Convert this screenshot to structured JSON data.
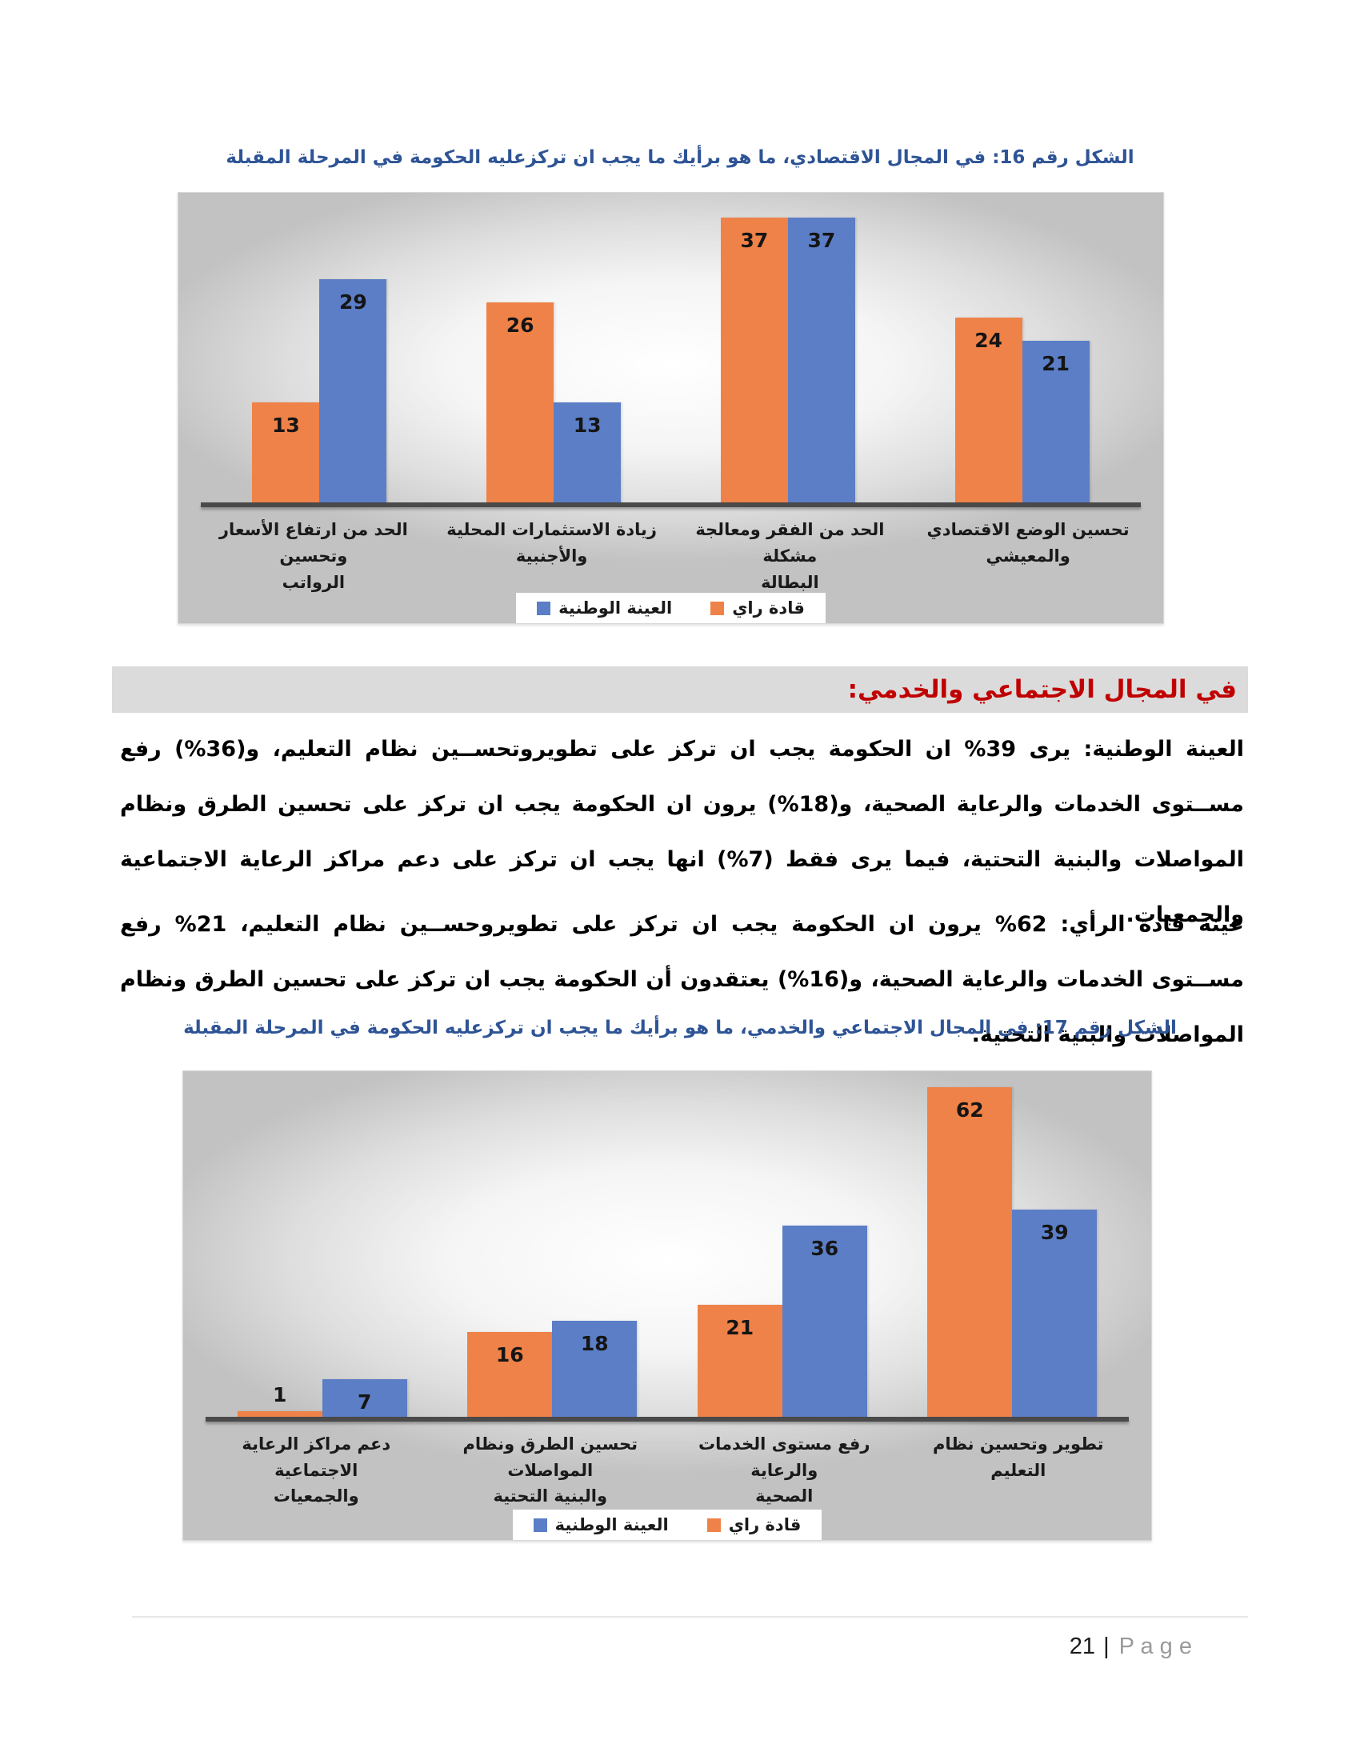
{
  "figure16": {
    "caption": "الشكل رقم  16: في المجال الاقتصادي، ما هو برأيك ما يجب ان تركزعليه الحكومة في المرحلة المقبلة"
  },
  "section_heading": "في المجال الاجتماعي والخدمي:",
  "paragraphs": {
    "national": "العينة الوطنية: يرى 39% ان الحكومة يجب ان تركز على تطويروتحســين نظام التعليم، و(36%) رفع مســتوى الخدمات والرعاية الصحية، و(18%) يرون ان الحكومة يجب ان تركز على تحسين الطرق ونظام المواصلات والبنية التحتية، فيما يرى فقط (7%) انها يجب ان تركز على دعم مراكز الرعاية الاجتماعية والجمعيات.",
    "leaders": "عينة قادة الرأي: 62% يرون ان الحكومة يجب ان تركز على تطويروحســين نظام التعليم، 21% رفع مســتوى الخدمات والرعاية الصحية، و(16%) يعتقدون أن الحكومة يجب ان تركز على تحسين الطرق ونظام المواصلات والبنية التحتية."
  },
  "figure17": {
    "caption": "الشكل رقم  17: في المجال الاجتماعي والخدمي، ما هو برأيك ما يجب ان تركزعليه الحكومة في المرحلة المقبلة"
  },
  "page": {
    "footer": {
      "page_number": "21",
      "divider": "|",
      "label": "P a g e"
    }
  },
  "chart_data": [
    {
      "figure": 16,
      "type": "bar",
      "title": "الشكل رقم  16: في المجال الاقتصادي، ما هو برأيك ما يجب ان تركزعليه الحكومة في المرحلة المقبلة",
      "categories": [
        "الحد من ارتفاع الأسعار وتحسين\nالرواتب",
        "زيادة الاستثمارات المحلية والأجنبية",
        "الحد من الفقر ومعالجة مشكلة\nالبطالة",
        "تحسين الوضع الاقتصادي والمعيشي"
      ],
      "series": [
        {
          "name": "قادة راي",
          "color": "#EF8248",
          "values": [
            13,
            26,
            37,
            24
          ]
        },
        {
          "name": "العينة الوطنية",
          "color": "#5B7EC6",
          "values": [
            29,
            13,
            37,
            21
          ]
        }
      ],
      "legend": [
        {
          "name": "العينة الوطنية",
          "color": "#5B7EC6"
        },
        {
          "name": "قادة راي",
          "color": "#EF8248"
        }
      ],
      "ylim": [
        0,
        40
      ],
      "value_labels": true,
      "grid": false,
      "legend_position": "bottom"
    },
    {
      "figure": 17,
      "type": "bar",
      "title": "الشكل رقم  17: في المجال الاجتماعي والخدمي، ما هو برأيك ما يجب ان تركزعليه الحكومة في المرحلة المقبلة",
      "categories": [
        "دعم مراكز الرعاية الاجتماعية\nوالجمعيات",
        "تحسين الطرق ونظام المواصلات\nوالبنية التحتية",
        "رفع مستوى الخدمات والرعاية\nالصحية",
        "تطوير وتحسين نظام التعليم"
      ],
      "series": [
        {
          "name": "قادة راي",
          "color": "#EF8248",
          "values": [
            1,
            16,
            21,
            62
          ]
        },
        {
          "name": "العينة الوطنية",
          "color": "#5B7EC6",
          "values": [
            7,
            18,
            36,
            39
          ]
        }
      ],
      "legend": [
        {
          "name": "العينة الوطنية",
          "color": "#5B7EC6"
        },
        {
          "name": "قادة راي",
          "color": "#EF8248"
        }
      ],
      "ylim": [
        0,
        65
      ],
      "value_labels": true,
      "grid": false,
      "legend_position": "bottom"
    }
  ]
}
